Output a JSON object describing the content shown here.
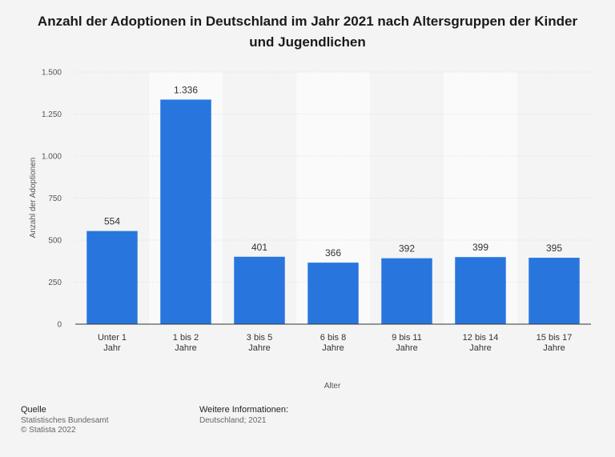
{
  "title": "Anzahl der Adoptionen in Deutschland im Jahr 2021 nach Altersgruppen der Kinder und Jugendlichen",
  "chart_data": {
    "type": "bar",
    "categories": [
      [
        "Unter 1",
        "Jahr"
      ],
      [
        "1 bis 2",
        "Jahre"
      ],
      [
        "3 bis 5",
        "Jahre"
      ],
      [
        "6 bis 8",
        "Jahre"
      ],
      [
        "9 bis 11",
        "Jahre"
      ],
      [
        "12 bis 14",
        "Jahre"
      ],
      [
        "15 bis 17",
        "Jahre"
      ]
    ],
    "values": [
      554,
      1336,
      401,
      366,
      392,
      399,
      395
    ],
    "value_labels": [
      "554",
      "1.336",
      "401",
      "366",
      "392",
      "399",
      "395"
    ],
    "xlabel": "Alter",
    "ylabel": "Anzahl der Adoptionen",
    "ylim": [
      0,
      1500
    ],
    "yticks": [
      0,
      250,
      500,
      750,
      1000,
      1250,
      1500
    ],
    "ytick_labels": [
      "0",
      "250",
      "500",
      "750",
      "1.000",
      "1.250",
      "1.500"
    ],
    "grid": true,
    "bar_color": "#2876dd"
  },
  "footer": {
    "source_heading": "Quelle",
    "source_lines": [
      "Statistisches Bundesamt",
      "© Statista 2022"
    ],
    "info_heading": "Weitere Informationen:",
    "info_lines": [
      "Deutschland; 2021"
    ]
  }
}
